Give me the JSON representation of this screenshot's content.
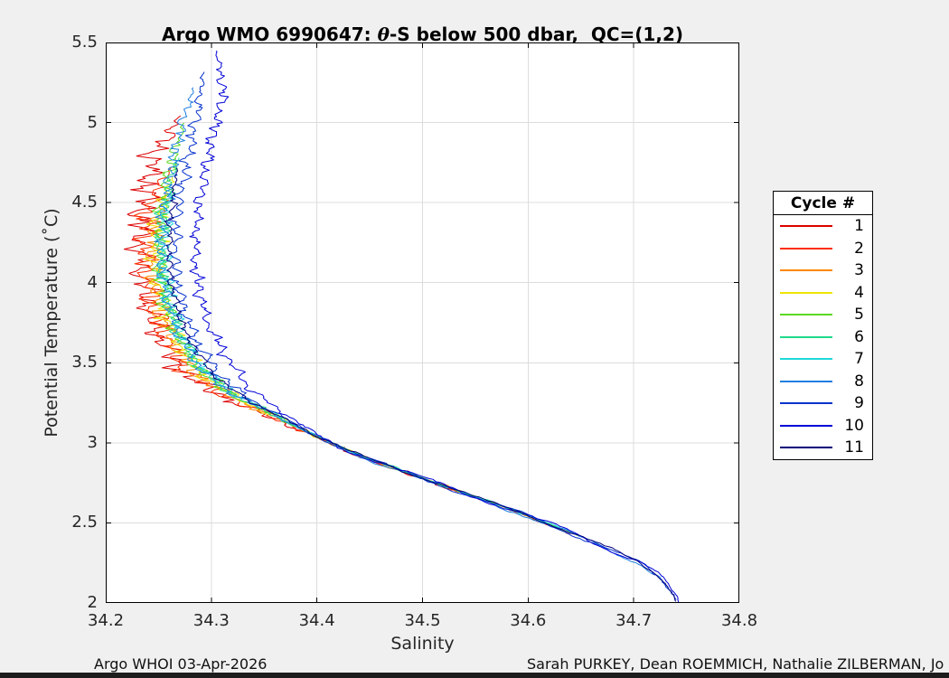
{
  "window": {
    "background_color": "#f0f0f0",
    "plot_background_color": "#ffffff",
    "bottom_bar_color": "#1d1d1d"
  },
  "title": {
    "prefix": "Argo WMO 6990647: ",
    "theta": "θ",
    "suffix": "-S below 500 dbar,  QC=(1,2)"
  },
  "footer": {
    "left": "Argo WHOI 03-Apr-2026",
    "right": "Sarah PURKEY, Dean ROEMMICH, Nathalie ZILBERMAN, Jo"
  },
  "legend": {
    "title": "Cycle #"
  },
  "chart_data": {
    "type": "line",
    "title": "Argo WMO 6990647: θ-S below 500 dbar,  QC=(1,2)",
    "xlabel": "Salinity",
    "ylabel": "Potential Temperature (˚C)",
    "xlim": [
      34.2,
      34.8
    ],
    "ylim": [
      2,
      5.5
    ],
    "xticks": [
      34.2,
      34.3,
      34.4,
      34.5,
      34.6,
      34.7,
      34.8
    ],
    "xtick_labels": [
      "34.2",
      "34.3",
      "34.4",
      "34.5",
      "34.6",
      "34.7",
      "34.8"
    ],
    "yticks": [
      2,
      2.5,
      3,
      3.5,
      4,
      4.5,
      5,
      5.5
    ],
    "ytick_labels": [
      "2",
      "2.5",
      "3",
      "3.5",
      "4",
      "4.5",
      "5",
      "5.5"
    ],
    "grid": true,
    "grid_color": "#dcdcdc",
    "axis_color": "#000000",
    "legend_title": "Cycle #",
    "legend_position": "right-outside",
    "backbone_theta_salinity": [
      [
        2.0,
        34.74
      ],
      [
        2.05,
        34.737
      ],
      [
        2.15,
        34.727
      ],
      [
        2.25,
        34.708
      ],
      [
        2.35,
        34.676
      ],
      [
        2.45,
        34.638
      ],
      [
        2.55,
        34.6
      ],
      [
        2.65,
        34.558
      ],
      [
        2.75,
        34.515
      ],
      [
        2.85,
        34.472
      ],
      [
        2.95,
        34.432
      ],
      [
        3.05,
        34.398
      ],
      [
        3.15,
        34.368
      ],
      [
        3.25,
        34.338
      ],
      [
        3.35,
        34.313
      ],
      [
        3.45,
        34.296
      ],
      [
        3.55,
        34.285
      ],
      [
        3.7,
        34.272
      ],
      [
        3.9,
        34.262
      ],
      [
        4.1,
        34.257
      ],
      [
        4.4,
        34.258
      ],
      [
        4.7,
        34.266
      ],
      [
        5.0,
        34.276
      ],
      [
        5.2,
        34.284
      ],
      [
        5.5,
        34.3
      ]
    ],
    "series": [
      {
        "name": "1",
        "color": "#dd0000",
        "theta_max": 5.04,
        "theta_min": 2.43,
        "offset": -0.024,
        "noise": 0.016,
        "tail": 0.002,
        "seed": 11
      },
      {
        "name": "2",
        "color": "#ff2e00",
        "theta_max": 4.72,
        "theta_min": 2.46,
        "offset": -0.019,
        "noise": 0.014,
        "tail": 0.002,
        "seed": 22
      },
      {
        "name": "3",
        "color": "#ff8800",
        "theta_max": 4.56,
        "theta_min": 2.47,
        "offset": -0.013,
        "noise": 0.011,
        "tail": 0.002,
        "seed": 33
      },
      {
        "name": "4",
        "color": "#ede400",
        "theta_max": 4.66,
        "theta_min": 2.45,
        "offset": -0.009,
        "noise": 0.011,
        "tail": 0.002,
        "seed": 44
      },
      {
        "name": "5",
        "color": "#5cd81f",
        "theta_max": 5.0,
        "theta_min": 2.42,
        "offset": -0.006,
        "noise": 0.009,
        "tail": 0.002,
        "seed": 55
      },
      {
        "name": "6",
        "color": "#1fd98b",
        "theta_max": 4.78,
        "theta_min": 2.46,
        "offset": -0.004,
        "noise": 0.009,
        "tail": 0.002,
        "seed": 66
      },
      {
        "name": "7",
        "color": "#1fd8d8",
        "theta_max": 4.58,
        "theta_min": 2.44,
        "offset": -0.002,
        "noise": 0.01,
        "tail": 0.003,
        "seed": 77
      },
      {
        "name": "8",
        "color": "#1e7fe0",
        "theta_max": 5.22,
        "theta_min": 2.06,
        "offset": -0.004,
        "noise": 0.008,
        "tail": 0.008,
        "seed": 88
      },
      {
        "name": "9",
        "color": "#0633cc",
        "theta_max": 5.32,
        "theta_min": 2.02,
        "offset": 0.009,
        "noise": 0.007,
        "tail": 0.009,
        "seed": 99
      },
      {
        "name": "10",
        "color": "#0000d8",
        "theta_max": 5.45,
        "theta_min": 2.0,
        "offset": 0.028,
        "noise": 0.007,
        "tail": 0.011,
        "seed": 110
      },
      {
        "name": "11",
        "color": "#00007a",
        "theta_max": 4.72,
        "theta_min": 2.01,
        "offset": 0.003,
        "noise": 0.005,
        "tail": 0.004,
        "seed": 121
      }
    ]
  }
}
